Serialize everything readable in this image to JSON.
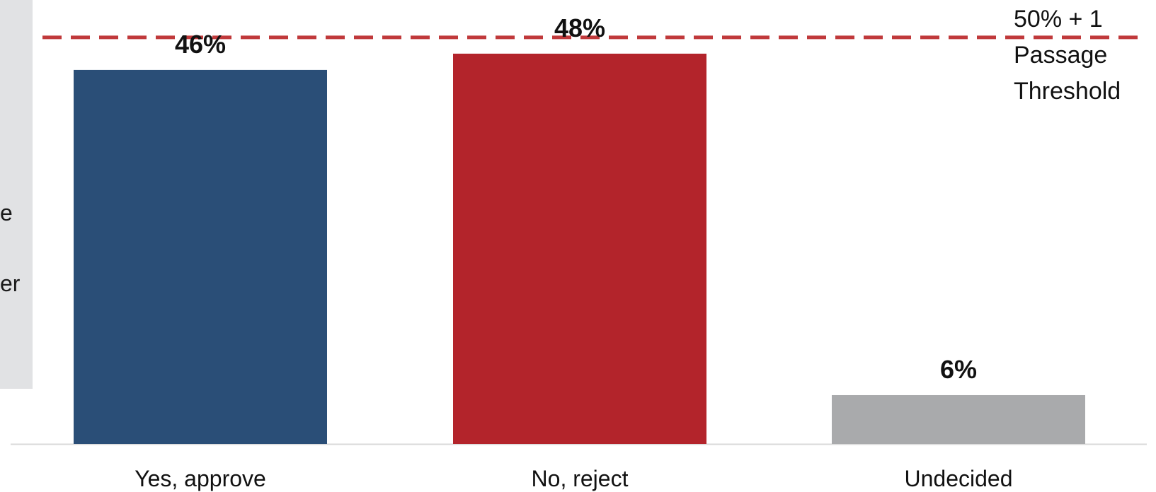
{
  "side_panel": {
    "fragments": [
      "e",
      "er"
    ],
    "color": "#e1e2e4"
  },
  "chart_data": {
    "type": "bar",
    "categories": [
      "Yes, approve",
      "No, reject",
      "Undecided"
    ],
    "values": [
      46,
      48,
      6
    ],
    "value_labels": [
      "46%",
      "48%",
      "6%"
    ],
    "colors": [
      "#2a4e77",
      "#b3242b",
      "#a9aaac"
    ],
    "ylim": [
      0,
      54.6
    ],
    "threshold": {
      "value": 50,
      "label_lines": [
        "50% + 1",
        "Passage",
        "Threshold"
      ],
      "color": "#c0393b",
      "style": "dashed"
    },
    "grid": false,
    "legend": "none"
  }
}
